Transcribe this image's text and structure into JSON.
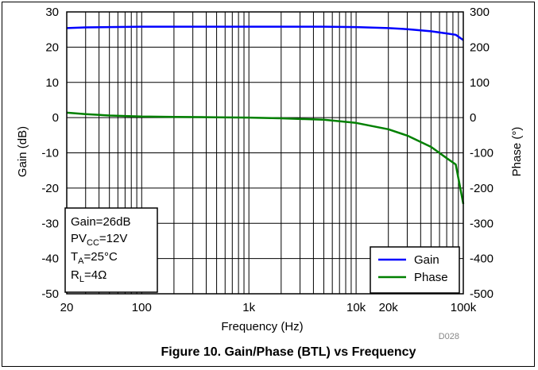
{
  "chart_data": {
    "type": "line",
    "x_scale": "log",
    "xlabel": "Frequency (Hz)",
    "ylabel_left": "Gain (dB)",
    "ylabel_right": "Phase (°)",
    "xlim": [
      20,
      100000
    ],
    "ylim_left": [
      -50,
      30
    ],
    "ylim_right": [
      -500,
      300
    ],
    "grid": true,
    "x_ticks": [
      20,
      100,
      1000,
      10000,
      20000,
      100000
    ],
    "x_tick_labels": [
      "20",
      "100",
      "1k",
      "10k",
      "20k",
      "100k"
    ],
    "y_left_ticks": [
      30,
      20,
      10,
      0,
      -10,
      -20,
      -30,
      -40,
      -50
    ],
    "y_left_tick_labels": [
      "30",
      "20",
      "10",
      "0",
      "-10",
      "-20",
      "-30",
      "-40",
      "-50"
    ],
    "y_right_ticks": [
      300,
      200,
      100,
      0,
      -100,
      -200,
      -300,
      -400,
      -500
    ],
    "y_right_tick_labels": [
      "300",
      "200",
      "100",
      "0",
      "-100",
      "-200",
      "-300",
      "-400",
      "-500"
    ],
    "x": [
      20,
      30,
      50,
      100,
      200,
      500,
      1000,
      2000,
      5000,
      10000,
      20000,
      30000,
      50000,
      70000,
      85000,
      100000
    ],
    "series": [
      {
        "name": "Gain",
        "axis": "left",
        "color": "#0000ff",
        "values": [
          25.4,
          25.6,
          25.7,
          25.8,
          25.8,
          25.8,
          25.8,
          25.8,
          25.8,
          25.7,
          25.4,
          25.1,
          24.5,
          23.9,
          23.5,
          22.0
        ]
      },
      {
        "name": "Phase",
        "axis": "right",
        "color": "#008000",
        "values": [
          14,
          10,
          6,
          3,
          2,
          1,
          0,
          -2,
          -6,
          -15,
          -33,
          -51,
          -83,
          -115,
          -133,
          -245
        ]
      }
    ],
    "legend": "bottom-right",
    "annotation": [
      "Gain=26dB",
      "PVCC=12V",
      "TA=25°C",
      "RL=4Ω"
    ],
    "figure_code": "D028",
    "caption": "Figure 10. Gain/Phase (BTL) vs Frequency"
  },
  "conditions": {
    "gain": "Gain=26dB",
    "pvcc_main": "PV",
    "pvcc_sub": "CC",
    "pvcc_val": "=12V",
    "ta_main": "T",
    "ta_sub": "A",
    "ta_val": "=25°C",
    "rl_main": "R",
    "rl_sub": "L",
    "rl_val": "=4Ω"
  },
  "legend": {
    "gain_label": "Gain",
    "phase_label": "Phase",
    "gain_color": "#0000ff",
    "phase_color": "#008000"
  }
}
